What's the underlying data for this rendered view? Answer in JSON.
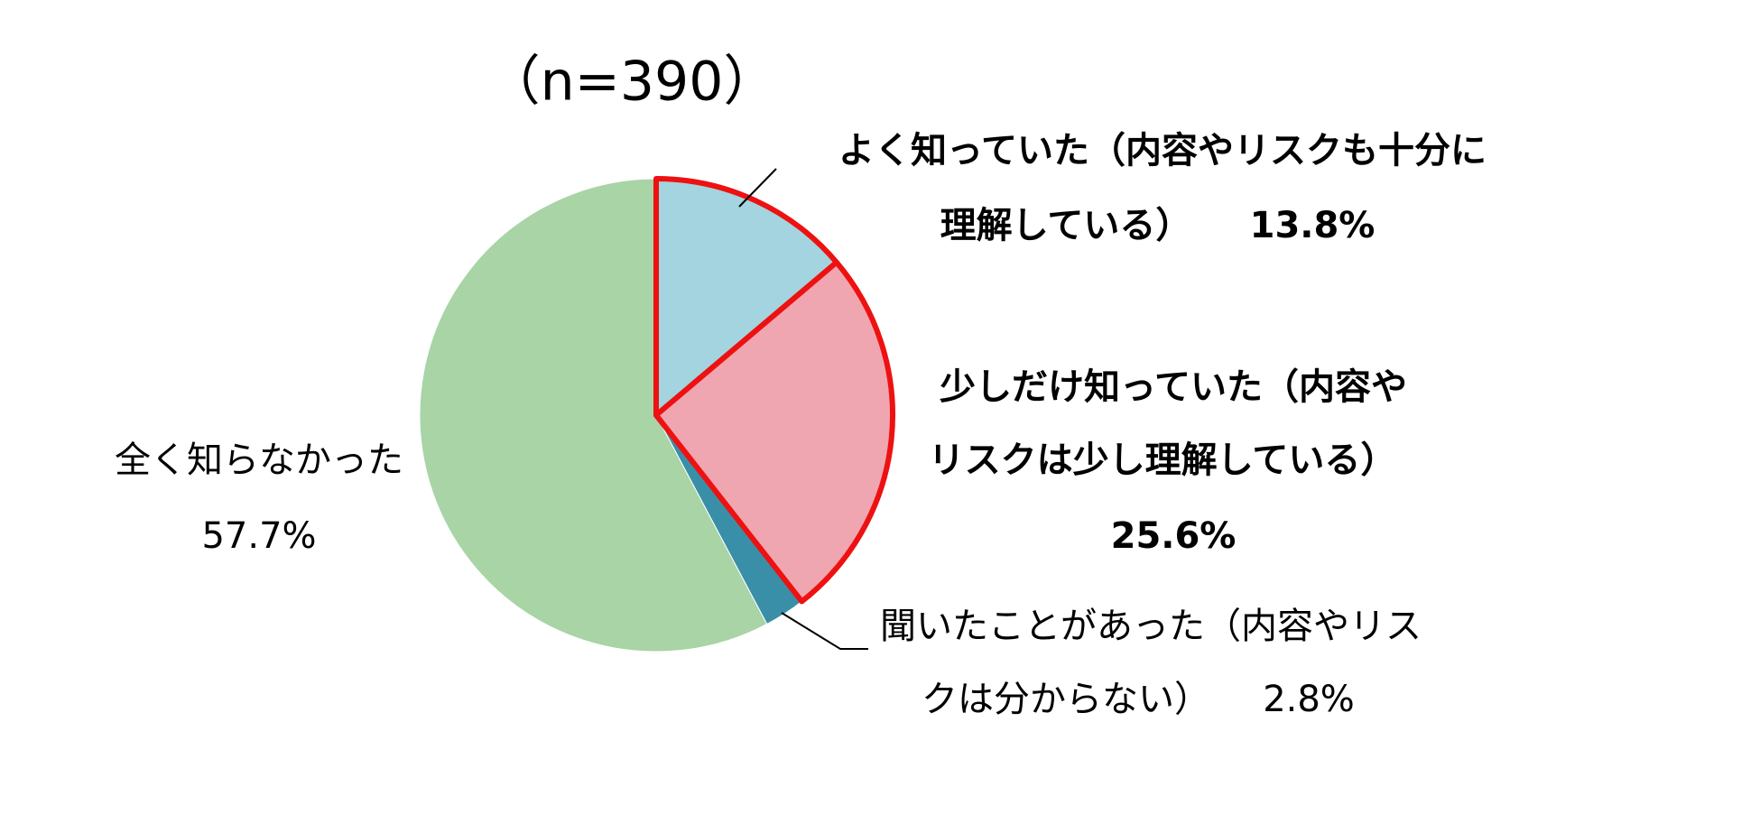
{
  "chart_data": {
    "type": "pie",
    "title": "（n=390）",
    "categories": [
      [
        "よく知っていた（内容やリスクも十分に",
        "理解している）"
      ],
      [
        "少しだけ知っていた（内容や",
        "リスクは少し理解している）"
      ],
      [
        "聞いたことがあった（内容やリス",
        "クは分からない）"
      ],
      [
        "全く知らなかった"
      ]
    ],
    "values": [
      13.8,
      25.6,
      2.8,
      57.7
    ],
    "value_labels": [
      "13.8%",
      "25.6%",
      "2.8%",
      "57.7%"
    ],
    "colors": [
      "#a3d4df",
      "#f0a6b0",
      "#3a8fa8",
      "#a8d4a6"
    ],
    "highlighted": [
      true,
      true,
      false,
      false
    ],
    "highlight_color": "#ee1111",
    "label_bold": [
      true,
      true,
      false,
      false
    ]
  }
}
